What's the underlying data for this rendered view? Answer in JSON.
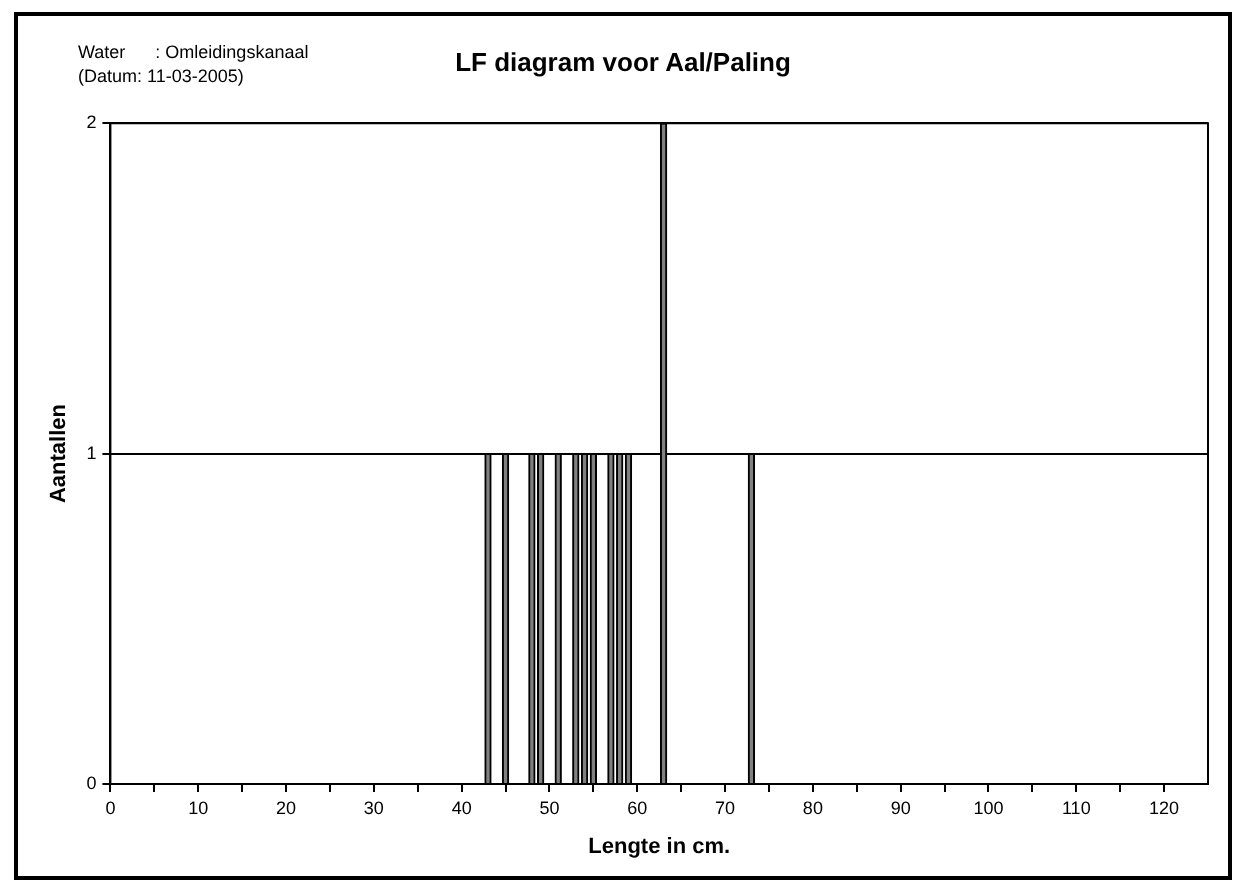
{
  "chart_data": {
    "type": "bar",
    "title": "LF diagram voor Aal/Paling",
    "xlabel": "Lengte in cm.",
    "ylabel": "Aantallen",
    "annotations": [
      "Water      : Omleidingskanaal",
      "(Datum: 11-03-2005)"
    ],
    "x": [
      43,
      45,
      48,
      49,
      51,
      53,
      54,
      55,
      57,
      58,
      59,
      63,
      73
    ],
    "values": [
      1,
      1,
      1,
      1,
      1,
      1,
      1,
      1,
      1,
      1,
      1,
      2,
      1
    ],
    "color": "#808080",
    "xlim": [
      0,
      125
    ],
    "xticks": [
      0,
      {
        "value": 5,
        "label": null
      },
      10,
      {
        "value": 15,
        "label": null
      },
      20,
      {
        "value": 25,
        "label": null
      },
      30,
      {
        "value": 35,
        "label": null
      },
      40,
      {
        "value": 45,
        "label": null
      },
      50,
      {
        "value": 55,
        "label": null
      },
      60,
      {
        "value": 65,
        "label": null
      },
      70,
      {
        "value": 75,
        "label": null
      },
      80,
      {
        "value": 85,
        "label": null
      },
      90,
      {
        "value": 95,
        "label": null
      },
      100,
      {
        "value": 105,
        "label": null
      },
      110,
      {
        "value": 115,
        "label": null
      },
      120
    ],
    "ylim": [
      0,
      2
    ],
    "yticks": [
      0,
      1,
      2
    ],
    "grid": "y",
    "legend": false
  }
}
